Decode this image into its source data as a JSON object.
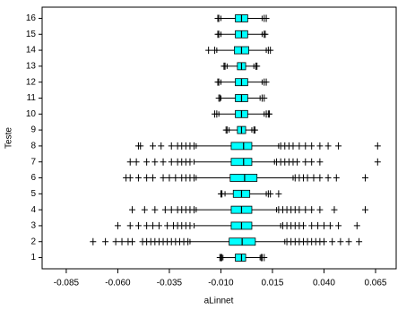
{
  "chart_data": {
    "type": "boxplot",
    "xlabel": "aLinnet",
    "ylabel": "Teste",
    "color": "#00ffff",
    "xlim": [
      -0.0967,
      0.075
    ],
    "xticks": [
      -0.085,
      {
        "value": -0.06,
        "label": "-0.060"
      },
      -0.035,
      {
        "value": -0.01,
        "label": "-0.010"
      },
      0.015,
      {
        "value": 0.04,
        "label": "0.040"
      },
      0.065
    ],
    "ylim": [
      0.3,
      16.7
    ],
    "categories": [
      "1",
      "2",
      "3",
      "4",
      "5",
      "6",
      "7",
      "8",
      "9",
      "10",
      "11",
      "12",
      "13",
      "14",
      "15",
      "16"
    ],
    "boxes": [
      {
        "q1": -0.003,
        "median": 0.0,
        "q3": 0.002,
        "whislo": -0.009,
        "whishi": 0.009,
        "outliers": [
          -0.0105,
          -0.01,
          -0.0095,
          0.0095,
          0.01,
          0.011
        ]
      },
      {
        "q1": -0.006,
        "median": 0.0003,
        "q3": 0.0067,
        "whislo": -0.025,
        "whishi": 0.021,
        "outliers": [
          -0.072,
          -0.066,
          -0.061,
          -0.058,
          -0.055,
          -0.053,
          -0.048,
          -0.046,
          -0.044,
          -0.042,
          -0.04,
          -0.038,
          -0.036,
          -0.034,
          -0.032,
          -0.03,
          -0.028,
          -0.026,
          0.022,
          0.024,
          0.026,
          0.028,
          0.03,
          0.032,
          0.034,
          0.036,
          0.038,
          0.04,
          0.044,
          0.048,
          0.052,
          0.057
        ]
      },
      {
        "q1": -0.005,
        "median": 0.0,
        "q3": 0.005,
        "whislo": -0.023,
        "whishi": 0.019,
        "outliers": [
          -0.06,
          -0.054,
          -0.05,
          -0.046,
          -0.043,
          -0.04,
          -0.036,
          -0.033,
          -0.031,
          -0.029,
          -0.027,
          -0.025,
          0.02,
          0.022,
          0.024,
          0.026,
          0.028,
          0.03,
          0.034,
          0.037,
          0.04,
          0.043,
          0.047,
          0.056
        ]
      },
      {
        "q1": -0.005,
        "median": 0.0,
        "q3": 0.005,
        "whislo": -0.022,
        "whishi": 0.017,
        "outliers": [
          -0.053,
          -0.047,
          -0.042,
          -0.037,
          -0.034,
          -0.031,
          -0.029,
          -0.027,
          -0.025,
          -0.023,
          0.018,
          0.02,
          0.022,
          0.024,
          0.026,
          0.028,
          0.031,
          0.034,
          0.038,
          0.045,
          0.06
        ]
      },
      {
        "q1": -0.004,
        "median": 0.0,
        "q3": 0.004,
        "whislo": -0.008,
        "whishi": 0.012,
        "outliers": [
          -0.01,
          -0.0095,
          0.013,
          0.014,
          0.018
        ]
      },
      {
        "q1": -0.0055,
        "median": 0.0015,
        "q3": 0.0075,
        "whislo": -0.022,
        "whishi": 0.025,
        "outliers": [
          -0.056,
          -0.054,
          -0.05,
          -0.046,
          -0.043,
          -0.038,
          -0.035,
          -0.032,
          -0.029,
          -0.027,
          -0.025,
          -0.023,
          0.026,
          0.028,
          0.03,
          0.032,
          0.035,
          0.038,
          0.042,
          0.046,
          0.06
        ]
      },
      {
        "q1": -0.005,
        "median": 0.001,
        "q3": 0.005,
        "whislo": -0.023,
        "whishi": 0.016,
        "outliers": [
          -0.054,
          -0.051,
          -0.046,
          -0.042,
          -0.038,
          -0.034,
          -0.031,
          -0.029,
          -0.027,
          -0.025,
          0.017,
          0.019,
          0.021,
          0.023,
          0.025,
          0.027,
          0.031,
          0.034,
          0.038,
          0.066
        ]
      },
      {
        "q1": -0.005,
        "median": 0.001,
        "q3": 0.005,
        "whislo": -0.022,
        "whishi": 0.018,
        "outliers": [
          -0.05,
          -0.049,
          -0.043,
          -0.039,
          -0.034,
          -0.031,
          -0.029,
          -0.027,
          -0.025,
          -0.023,
          0.019,
          0.021,
          0.023,
          0.025,
          0.028,
          0.031,
          0.034,
          0.038,
          0.042,
          0.047,
          0.066
        ]
      },
      {
        "q1": -0.002,
        "median": 0.0,
        "q3": 0.002,
        "whislo": -0.006,
        "whishi": 0.005,
        "outliers": [
          -0.0075,
          -0.007,
          0.006,
          0.0065
        ]
      },
      {
        "q1": -0.003,
        "median": 0.0,
        "q3": 0.003,
        "whislo": -0.011,
        "whishi": 0.011,
        "outliers": [
          -0.013,
          -0.012,
          0.012,
          0.013,
          0.0135
        ]
      },
      {
        "q1": -0.003,
        "median": 0.0,
        "q3": 0.003,
        "whislo": -0.01,
        "whishi": 0.009,
        "outliers": [
          -0.011,
          -0.0105,
          0.01,
          0.011
        ]
      },
      {
        "q1": -0.003,
        "median": 0.0,
        "q3": 0.003,
        "whislo": -0.01,
        "whishi": 0.01,
        "outliers": [
          -0.0115,
          -0.011,
          0.011,
          0.012
        ]
      },
      {
        "q1": -0.002,
        "median": 0.0,
        "q3": 0.002,
        "whislo": -0.007,
        "whishi": 0.006,
        "outliers": [
          -0.0085,
          -0.008,
          0.007,
          0.0075
        ]
      },
      {
        "q1": -0.0035,
        "median": 0.0,
        "q3": 0.0035,
        "whislo": -0.012,
        "whishi": 0.012,
        "outliers": [
          -0.016,
          -0.013,
          0.013,
          0.014
        ]
      },
      {
        "q1": -0.003,
        "median": 0.0,
        "q3": 0.003,
        "whislo": -0.01,
        "whishi": 0.01,
        "outliers": [
          -0.0115,
          -0.011,
          0.011,
          0.0115
        ]
      },
      {
        "q1": -0.003,
        "median": 0.0,
        "q3": 0.003,
        "whislo": -0.01,
        "whishi": 0.01,
        "outliers": [
          -0.0115,
          -0.011,
          0.011,
          0.012
        ]
      }
    ]
  }
}
